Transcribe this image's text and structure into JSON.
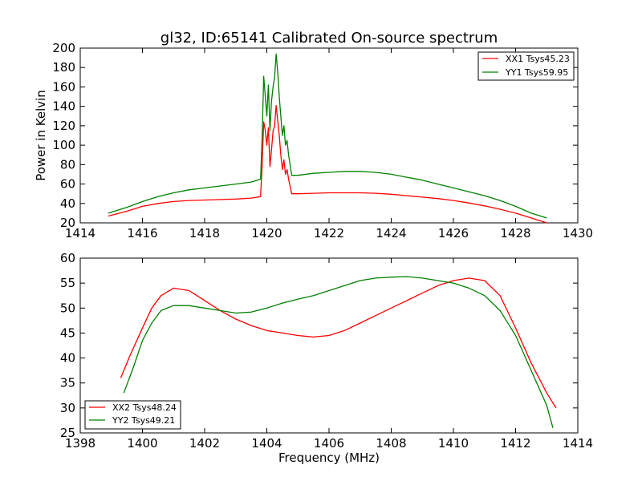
{
  "chart_data": [
    {
      "type": "line",
      "title": "gl32, ID:65141 Calibrated On-source spectrum",
      "xlabel": "",
      "ylabel": "Power in Kelvin",
      "xlim": [
        1414,
        1430
      ],
      "ylim": [
        20,
        200
      ],
      "xticks": [
        "1414",
        "1416",
        "1418",
        "1420",
        "1422",
        "1424",
        "1426",
        "1428",
        "1430"
      ],
      "yticks": [
        "20",
        "40",
        "60",
        "80",
        "100",
        "120",
        "140",
        "160",
        "180",
        "200"
      ],
      "grid": false,
      "legend_position": "top-right",
      "series": [
        {
          "name": "XX1 Tsys45.23",
          "color": "#ff0000",
          "x": [
            1414.9,
            1415.5,
            1416,
            1416.5,
            1417,
            1417.5,
            1418,
            1418.5,
            1419,
            1419.5,
            1419.8,
            1419.85,
            1419.9,
            1419.95,
            1420.0,
            1420.05,
            1420.1,
            1420.15,
            1420.2,
            1420.25,
            1420.3,
            1420.35,
            1420.4,
            1420.45,
            1420.5,
            1420.55,
            1420.6,
            1420.65,
            1420.7,
            1420.8,
            1421,
            1421.5,
            1422,
            1422.5,
            1423,
            1423.5,
            1424,
            1424.5,
            1425,
            1425.5,
            1426,
            1426.5,
            1427,
            1427.5,
            1428,
            1428.5,
            1429
          ],
          "y": [
            27,
            32,
            37,
            40,
            42,
            43,
            43.5,
            44,
            44.5,
            45.5,
            47,
            80,
            124,
            115,
            100,
            118,
            78,
            95,
            115,
            120,
            141,
            125,
            110,
            90,
            75,
            85,
            70,
            75,
            65,
            50,
            50,
            50.5,
            51,
            51,
            51,
            50.5,
            49.5,
            48,
            46.5,
            45,
            43,
            40.5,
            37.5,
            34,
            30,
            25,
            20
          ]
        },
        {
          "name": "YY1 Tsys59.95",
          "color": "#008000",
          "x": [
            1414.9,
            1415.5,
            1416,
            1416.5,
            1417,
            1417.5,
            1418,
            1418.5,
            1419,
            1419.5,
            1419.8,
            1419.85,
            1419.9,
            1419.95,
            1420.0,
            1420.05,
            1420.1,
            1420.15,
            1420.2,
            1420.25,
            1420.3,
            1420.35,
            1420.4,
            1420.45,
            1420.5,
            1420.55,
            1420.6,
            1420.65,
            1420.7,
            1420.8,
            1421,
            1421.5,
            1422,
            1422.5,
            1423,
            1423.5,
            1424,
            1424.5,
            1425,
            1425.5,
            1426,
            1426.5,
            1427,
            1427.5,
            1428,
            1428.5,
            1429
          ],
          "y": [
            30,
            36,
            42,
            47,
            51,
            54,
            56,
            58,
            60,
            62,
            65,
            110,
            171,
            150,
            130,
            162,
            115,
            145,
            160,
            170,
            194,
            175,
            150,
            130,
            110,
            120,
            100,
            105,
            90,
            69,
            69,
            71,
            72,
            73,
            73,
            72,
            70,
            67,
            64,
            60,
            56,
            52,
            48,
            43,
            37,
            30,
            25
          ]
        }
      ]
    },
    {
      "type": "line",
      "title": "",
      "xlabel": "Frequency (MHz)",
      "ylabel": "",
      "xlim": [
        1398,
        1414
      ],
      "ylim": [
        25,
        60
      ],
      "xticks": [
        "1398",
        "1400",
        "1402",
        "1404",
        "1406",
        "1408",
        "1410",
        "1412",
        "1414"
      ],
      "yticks": [
        "25",
        "30",
        "35",
        "40",
        "45",
        "50",
        "55",
        "60"
      ],
      "grid": false,
      "legend_position": "bottom-left",
      "series": [
        {
          "name": "XX2 Tsys48.24",
          "color": "#ff0000",
          "x": [
            1399.3,
            1399.6,
            1400.0,
            1400.3,
            1400.6,
            1401.0,
            1401.5,
            1402.0,
            1402.5,
            1403.0,
            1403.5,
            1404.0,
            1404.5,
            1405.0,
            1405.5,
            1406.0,
            1406.5,
            1407.0,
            1407.5,
            1408.0,
            1408.5,
            1409.0,
            1409.5,
            1410.0,
            1410.5,
            1411.0,
            1411.5,
            1412.0,
            1412.5,
            1413.0,
            1413.3
          ],
          "y": [
            36,
            40.5,
            46,
            50,
            52.5,
            54,
            53.5,
            51.5,
            49.5,
            47.8,
            46.5,
            45.5,
            45,
            44.5,
            44.2,
            44.5,
            45.5,
            47,
            48.5,
            50,
            51.5,
            53,
            54.5,
            55.5,
            56,
            55.5,
            52.5,
            46,
            39,
            33,
            30
          ]
        },
        {
          "name": "YY2 Tsys49.21",
          "color": "#008000",
          "x": [
            1399.4,
            1399.7,
            1400.0,
            1400.3,
            1400.6,
            1401.0,
            1401.5,
            1402.0,
            1402.5,
            1403.0,
            1403.5,
            1404.0,
            1404.5,
            1405.0,
            1405.5,
            1406.0,
            1406.5,
            1407.0,
            1407.5,
            1408.0,
            1408.5,
            1409.0,
            1409.5,
            1410.0,
            1410.5,
            1411.0,
            1411.5,
            1412.0,
            1412.5,
            1413.0,
            1413.2
          ],
          "y": [
            33,
            38,
            43.5,
            47,
            49.5,
            50.5,
            50.5,
            50,
            49.5,
            49,
            49.2,
            50,
            51,
            51.8,
            52.5,
            53.5,
            54.5,
            55.5,
            56,
            56.2,
            56.3,
            56,
            55.5,
            55,
            54,
            52.5,
            49.5,
            44.5,
            37.5,
            30.5,
            26
          ]
        }
      ]
    }
  ]
}
